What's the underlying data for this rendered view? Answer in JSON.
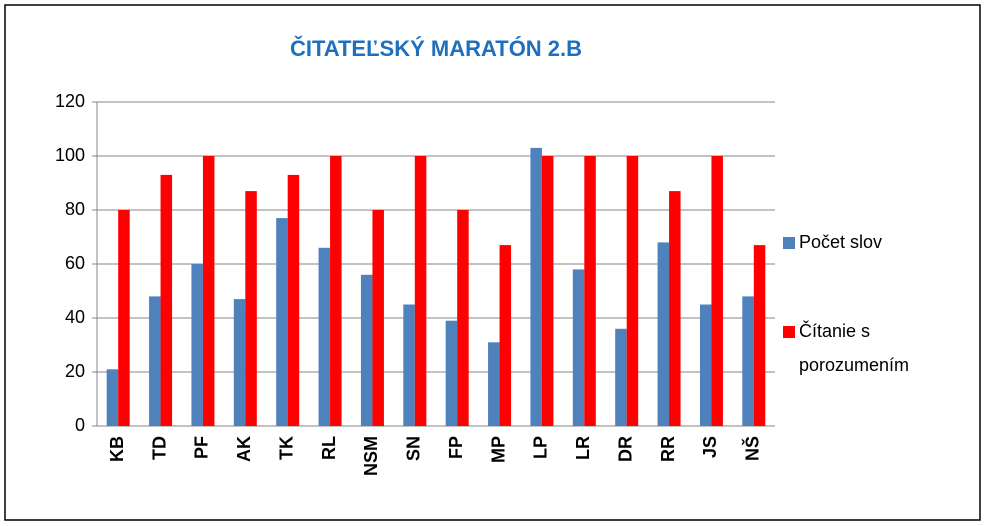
{
  "chart_data": {
    "type": "bar",
    "title": "ČITATEĽSKÝ MARATÓN 2.B",
    "categories": [
      "KB",
      "TD",
      "PF",
      "AK",
      "TK",
      "RL",
      "NSM",
      "SN",
      "FP",
      "MP",
      "LP",
      "LR",
      "DR",
      "RR",
      "JS",
      "NŠ"
    ],
    "series": [
      {
        "name": "Počet slov",
        "color": "#4f81bd",
        "values": [
          21,
          48,
          60,
          47,
          77,
          66,
          56,
          45,
          39,
          31,
          103,
          58,
          36,
          68,
          45,
          48
        ]
      },
      {
        "name": "Čítanie s porozumením",
        "color": "#ff0000",
        "values": [
          80,
          93,
          100,
          87,
          93,
          100,
          80,
          100,
          80,
          67,
          100,
          100,
          100,
          87,
          100,
          67
        ]
      }
    ],
    "ylim": [
      0,
      120
    ],
    "yticks": [
      0,
      20,
      40,
      60,
      80,
      100,
      120
    ],
    "grid": true,
    "legend": "right"
  }
}
